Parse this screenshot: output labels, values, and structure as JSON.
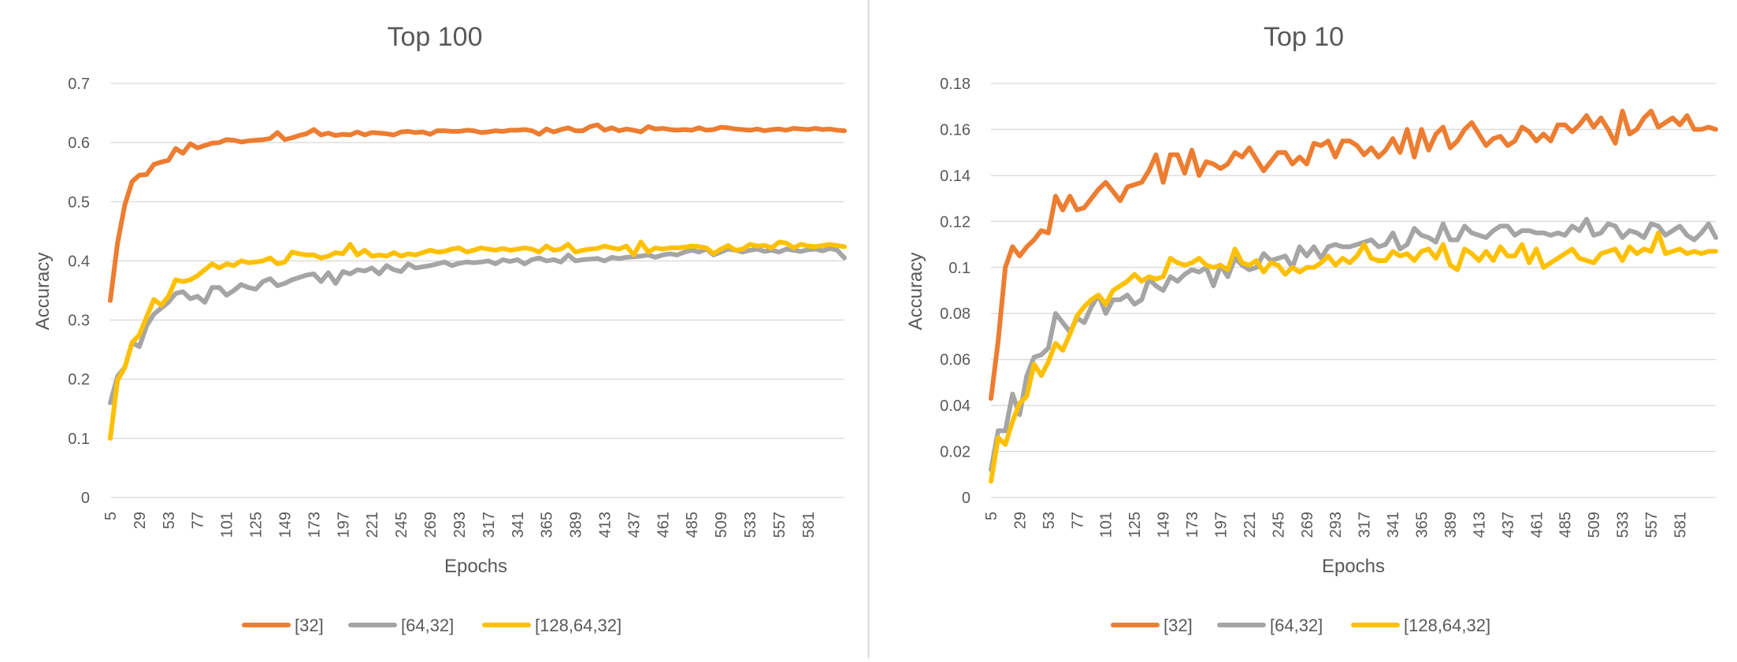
{
  "chart_data": [
    {
      "type": "line",
      "title": "Top 100",
      "xlabel": "Epochs",
      "ylabel": "Accuracy",
      "ylim": [
        0,
        0.7
      ],
      "yticks": [
        "0",
        "0.1",
        "0.2",
        "0.3",
        "0.4",
        "0.5",
        "0.6",
        "0.7"
      ],
      "x_start": 5,
      "x_step": 6,
      "x_tick_labels": [
        "5",
        "29",
        "53",
        "77",
        "101",
        "125",
        "149",
        "173",
        "197",
        "221",
        "245",
        "269",
        "293",
        "317",
        "341",
        "365",
        "389",
        "413",
        "437",
        "461",
        "485",
        "509",
        "533",
        "557",
        "581"
      ],
      "grid": true,
      "legend": "bottom",
      "series": [
        {
          "name": "[32]",
          "color": "#ED7D31",
          "values": [
            0.333,
            0.43,
            0.495,
            0.534,
            0.545,
            0.546,
            0.563,
            0.567,
            0.57,
            0.59,
            0.582,
            0.598,
            0.591,
            0.595,
            0.599,
            0.6,
            0.605,
            0.604,
            0.601,
            0.603,
            0.604,
            0.605,
            0.607,
            0.617,
            0.605,
            0.608,
            0.612,
            0.615,
            0.622,
            0.613,
            0.616,
            0.612,
            0.614,
            0.613,
            0.618,
            0.613,
            0.617,
            0.616,
            0.615,
            0.613,
            0.618,
            0.619,
            0.617,
            0.618,
            0.614,
            0.62,
            0.62,
            0.619,
            0.619,
            0.621,
            0.62,
            0.617,
            0.618,
            0.62,
            0.619,
            0.621,
            0.621,
            0.622,
            0.62,
            0.614,
            0.623,
            0.618,
            0.622,
            0.625,
            0.62,
            0.62,
            0.627,
            0.63,
            0.621,
            0.625,
            0.62,
            0.623,
            0.621,
            0.618,
            0.627,
            0.623,
            0.624,
            0.622,
            0.621,
            0.622,
            0.621,
            0.625,
            0.621,
            0.622,
            0.626,
            0.625,
            0.623,
            0.622,
            0.621,
            0.623,
            0.62,
            0.622,
            0.623,
            0.621,
            0.624,
            0.623,
            0.622,
            0.624,
            0.622,
            0.623,
            0.621,
            0.62
          ]
        },
        {
          "name": "[64,32]",
          "color": "#A5A5A5",
          "values": [
            0.16,
            0.205,
            0.22,
            0.262,
            0.255,
            0.29,
            0.31,
            0.32,
            0.33,
            0.345,
            0.348,
            0.336,
            0.34,
            0.33,
            0.355,
            0.355,
            0.342,
            0.35,
            0.36,
            0.355,
            0.352,
            0.365,
            0.37,
            0.358,
            0.362,
            0.368,
            0.372,
            0.376,
            0.378,
            0.365,
            0.38,
            0.362,
            0.382,
            0.378,
            0.385,
            0.383,
            0.388,
            0.378,
            0.392,
            0.385,
            0.382,
            0.395,
            0.388,
            0.39,
            0.392,
            0.395,
            0.398,
            0.392,
            0.396,
            0.398,
            0.397,
            0.398,
            0.4,
            0.395,
            0.402,
            0.399,
            0.402,
            0.395,
            0.402,
            0.405,
            0.4,
            0.402,
            0.398,
            0.41,
            0.4,
            0.402,
            0.403,
            0.404,
            0.4,
            0.406,
            0.404,
            0.406,
            0.407,
            0.408,
            0.41,
            0.406,
            0.41,
            0.412,
            0.41,
            0.415,
            0.418,
            0.415,
            0.42,
            0.41,
            0.415,
            0.42,
            0.418,
            0.415,
            0.418,
            0.42,
            0.416,
            0.418,
            0.415,
            0.42,
            0.418,
            0.416,
            0.419,
            0.42,
            0.417,
            0.421,
            0.418,
            0.405
          ]
        },
        {
          "name": "[128,64,32]",
          "color": "#FFC000",
          "values": [
            0.1,
            0.198,
            0.22,
            0.262,
            0.275,
            0.305,
            0.335,
            0.325,
            0.34,
            0.368,
            0.365,
            0.368,
            0.375,
            0.385,
            0.395,
            0.388,
            0.395,
            0.392,
            0.4,
            0.397,
            0.398,
            0.4,
            0.405,
            0.395,
            0.398,
            0.415,
            0.412,
            0.41,
            0.41,
            0.405,
            0.408,
            0.414,
            0.412,
            0.428,
            0.41,
            0.418,
            0.408,
            0.41,
            0.408,
            0.414,
            0.408,
            0.412,
            0.41,
            0.414,
            0.418,
            0.415,
            0.416,
            0.42,
            0.422,
            0.415,
            0.418,
            0.422,
            0.42,
            0.418,
            0.421,
            0.418,
            0.42,
            0.422,
            0.42,
            0.415,
            0.425,
            0.418,
            0.42,
            0.428,
            0.415,
            0.418,
            0.42,
            0.421,
            0.425,
            0.422,
            0.42,
            0.425,
            0.41,
            0.432,
            0.415,
            0.422,
            0.42,
            0.422,
            0.422,
            0.423,
            0.425,
            0.424,
            0.422,
            0.412,
            0.42,
            0.426,
            0.418,
            0.42,
            0.428,
            0.425,
            0.426,
            0.422,
            0.432,
            0.43,
            0.422,
            0.428,
            0.425,
            0.424,
            0.426,
            0.428,
            0.426,
            0.424
          ]
        }
      ]
    },
    {
      "type": "line",
      "title": "Top 10",
      "xlabel": "Epochs",
      "ylabel": "Accuracy",
      "ylim": [
        0,
        0.18
      ],
      "yticks": [
        "0",
        "0.02",
        "0.04",
        "0.06",
        "0.08",
        "0.1",
        "0.12",
        "0.14",
        "0.16",
        "0.18"
      ],
      "x_start": 5,
      "x_step": 6,
      "x_tick_labels": [
        "5",
        "29",
        "53",
        "77",
        "101",
        "125",
        "149",
        "173",
        "197",
        "221",
        "245",
        "269",
        "293",
        "317",
        "341",
        "365",
        "389",
        "413",
        "437",
        "461",
        "485",
        "509",
        "533",
        "557",
        "581"
      ],
      "grid": true,
      "legend": "bottom",
      "series": [
        {
          "name": "[32]",
          "color": "#ED7D31",
          "values": [
            0.043,
            0.068,
            0.1,
            0.109,
            0.105,
            0.109,
            0.112,
            0.116,
            0.115,
            0.131,
            0.125,
            0.131,
            0.125,
            0.126,
            0.13,
            0.134,
            0.137,
            0.133,
            0.129,
            0.135,
            0.136,
            0.137,
            0.142,
            0.149,
            0.137,
            0.149,
            0.149,
            0.141,
            0.151,
            0.14,
            0.146,
            0.145,
            0.143,
            0.145,
            0.15,
            0.148,
            0.152,
            0.147,
            0.142,
            0.146,
            0.15,
            0.15,
            0.145,
            0.148,
            0.145,
            0.154,
            0.153,
            0.155,
            0.148,
            0.155,
            0.155,
            0.153,
            0.149,
            0.152,
            0.148,
            0.151,
            0.156,
            0.15,
            0.16,
            0.148,
            0.16,
            0.151,
            0.158,
            0.161,
            0.152,
            0.155,
            0.16,
            0.163,
            0.158,
            0.153,
            0.156,
            0.157,
            0.153,
            0.155,
            0.161,
            0.159,
            0.155,
            0.158,
            0.155,
            0.162,
            0.162,
            0.159,
            0.162,
            0.166,
            0.161,
            0.165,
            0.16,
            0.154,
            0.168,
            0.158,
            0.16,
            0.165,
            0.168,
            0.161,
            0.163,
            0.165,
            0.162,
            0.166,
            0.16,
            0.16,
            0.161,
            0.16
          ]
        },
        {
          "name": "[64,32]",
          "color": "#A5A5A5",
          "values": [
            0.012,
            0.029,
            0.029,
            0.045,
            0.036,
            0.053,
            0.061,
            0.062,
            0.065,
            0.08,
            0.076,
            0.072,
            0.078,
            0.076,
            0.083,
            0.088,
            0.08,
            0.086,
            0.086,
            0.088,
            0.084,
            0.086,
            0.095,
            0.092,
            0.09,
            0.096,
            0.094,
            0.097,
            0.099,
            0.098,
            0.1,
            0.092,
            0.101,
            0.096,
            0.104,
            0.101,
            0.099,
            0.1,
            0.106,
            0.103,
            0.104,
            0.105,
            0.1,
            0.109,
            0.105,
            0.109,
            0.104,
            0.109,
            0.11,
            0.109,
            0.109,
            0.11,
            0.111,
            0.112,
            0.109,
            0.11,
            0.115,
            0.108,
            0.11,
            0.117,
            0.114,
            0.113,
            0.111,
            0.119,
            0.112,
            0.112,
            0.118,
            0.115,
            0.114,
            0.113,
            0.116,
            0.118,
            0.118,
            0.114,
            0.116,
            0.116,
            0.115,
            0.115,
            0.114,
            0.115,
            0.114,
            0.118,
            0.116,
            0.121,
            0.114,
            0.115,
            0.119,
            0.118,
            0.113,
            0.116,
            0.115,
            0.113,
            0.119,
            0.118,
            0.114,
            0.116,
            0.118,
            0.114,
            0.112,
            0.115,
            0.119,
            0.113
          ]
        },
        {
          "name": "[128,64,32]",
          "color": "#FFC000",
          "values": [
            0.007,
            0.026,
            0.023,
            0.033,
            0.041,
            0.044,
            0.058,
            0.053,
            0.059,
            0.067,
            0.064,
            0.071,
            0.079,
            0.083,
            0.086,
            0.088,
            0.084,
            0.09,
            0.092,
            0.094,
            0.097,
            0.094,
            0.096,
            0.095,
            0.096,
            0.104,
            0.102,
            0.101,
            0.102,
            0.104,
            0.101,
            0.1,
            0.101,
            0.099,
            0.108,
            0.102,
            0.101,
            0.103,
            0.098,
            0.102,
            0.101,
            0.097,
            0.1,
            0.098,
            0.1,
            0.1,
            0.102,
            0.105,
            0.101,
            0.104,
            0.102,
            0.105,
            0.11,
            0.104,
            0.103,
            0.103,
            0.107,
            0.105,
            0.106,
            0.103,
            0.107,
            0.108,
            0.104,
            0.11,
            0.101,
            0.099,
            0.108,
            0.106,
            0.103,
            0.107,
            0.103,
            0.109,
            0.105,
            0.105,
            0.11,
            0.102,
            0.108,
            0.1,
            0.102,
            0.104,
            0.106,
            0.108,
            0.104,
            0.103,
            0.102,
            0.106,
            0.107,
            0.108,
            0.103,
            0.109,
            0.106,
            0.108,
            0.107,
            0.115,
            0.106,
            0.107,
            0.108,
            0.106,
            0.107,
            0.106,
            0.107,
            0.107
          ]
        }
      ]
    }
  ]
}
